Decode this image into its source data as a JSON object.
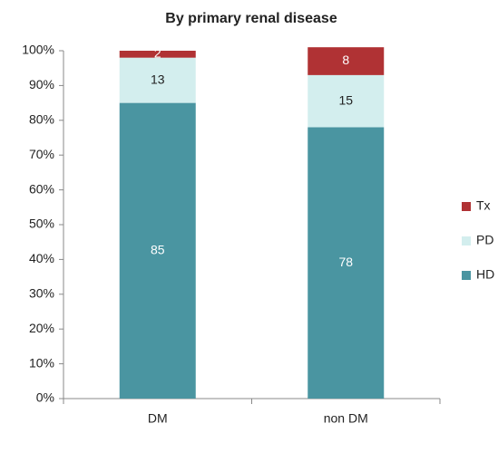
{
  "chart_data": {
    "type": "stacked_bar",
    "title": "By primary renal disease",
    "categories": [
      "DM",
      "non DM"
    ],
    "series": [
      {
        "name": "HD",
        "color": "#4a95a1",
        "values": [
          85,
          78
        ]
      },
      {
        "name": "PD",
        "color": "#d3eeee",
        "values": [
          13,
          15
        ]
      },
      {
        "name": "Tx",
        "color": "#b03234",
        "values": [
          2,
          8
        ]
      }
    ],
    "ylim": [
      0,
      100
    ],
    "yticks": [
      {
        "value": 0,
        "label": "0%"
      },
      {
        "value": 10,
        "label": "10%"
      },
      {
        "value": 20,
        "label": "20%"
      },
      {
        "value": 30,
        "label": "30%"
      },
      {
        "value": 40,
        "label": "40%"
      },
      {
        "value": 50,
        "label": "50%"
      },
      {
        "value": 60,
        "label": "60%"
      },
      {
        "value": 70,
        "label": "70%"
      },
      {
        "value": 80,
        "label": "80%"
      },
      {
        "value": 90,
        "label": "90%"
      },
      {
        "value": 100,
        "label": "100%"
      }
    ],
    "legend": "right"
  }
}
